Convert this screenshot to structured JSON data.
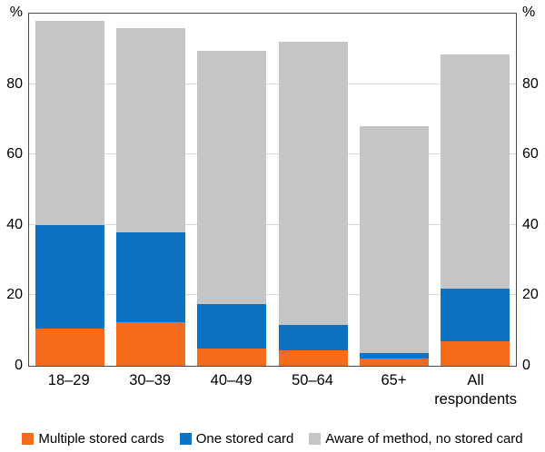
{
  "chart_data": {
    "type": "bar",
    "stacked": true,
    "title": "",
    "categories": [
      "18–29",
      "30–39",
      "40–49",
      "50–64",
      "65+",
      "All respondents"
    ],
    "series": [
      {
        "name": "Multiple stored cards",
        "color": "#f76b1c",
        "values": [
          10.5,
          12.5,
          5,
          4.5,
          2,
          7
        ]
      },
      {
        "name": "One stored card",
        "color": "#0d72c4",
        "values": [
          29.5,
          25.5,
          12.5,
          7,
          1.5,
          15
        ]
      },
      {
        "name": "Aware of method, no stored card",
        "color": "#c5c5c8",
        "values": [
          58,
          58,
          72,
          80.5,
          64.5,
          66.5
        ]
      }
    ],
    "y_axis": {
      "unit": "%",
      "ylim": [
        0,
        100
      ],
      "yticks": [
        0,
        20,
        40,
        60,
        80
      ],
      "sides": [
        "left",
        "right"
      ]
    },
    "grid": true,
    "legend_position": "bottom"
  }
}
